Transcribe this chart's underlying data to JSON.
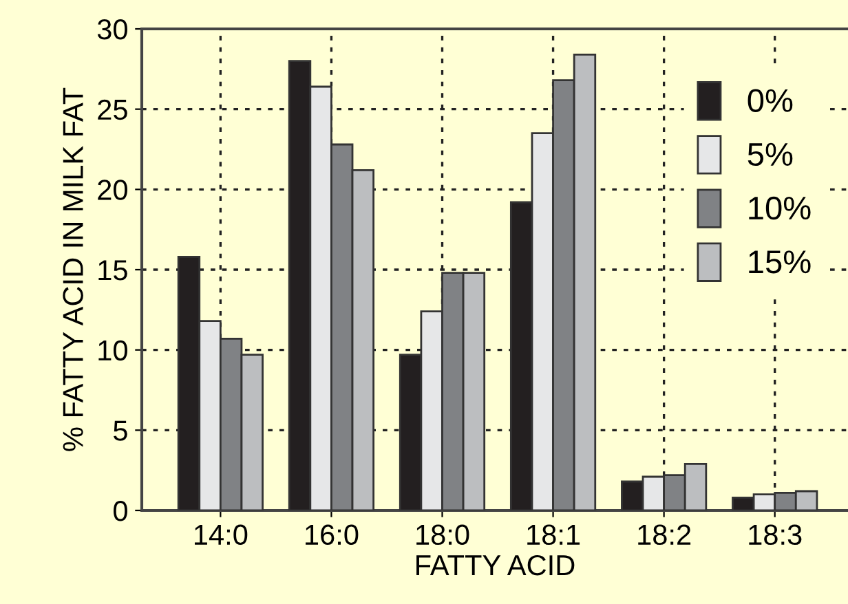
{
  "chart_data": {
    "type": "bar",
    "xlabel": "FATTY ACID",
    "ylabel": "% FATTY ACID IN MILK FAT",
    "categories": [
      "14:0",
      "16:0",
      "18:0",
      "18:1",
      "18:2",
      "18:3"
    ],
    "series": [
      {
        "name": "0%",
        "color": "#231f20",
        "values": [
          15.8,
          28.0,
          9.7,
          19.2,
          1.8,
          0.8
        ]
      },
      {
        "name": "5%",
        "color": "#e6e7e8",
        "values": [
          11.8,
          26.4,
          12.4,
          23.5,
          2.1,
          1.0
        ]
      },
      {
        "name": "10%",
        "color": "#808285",
        "values": [
          10.7,
          22.8,
          14.8,
          26.8,
          2.2,
          1.1
        ]
      },
      {
        "name": "15%",
        "color": "#bcbec0",
        "values": [
          9.7,
          21.2,
          14.8,
          28.4,
          2.9,
          1.2
        ]
      }
    ],
    "ylim": [
      0,
      30
    ],
    "yticks": [
      0,
      5,
      10,
      15,
      20,
      25,
      30
    ],
    "grid": true,
    "legend": "top right"
  }
}
